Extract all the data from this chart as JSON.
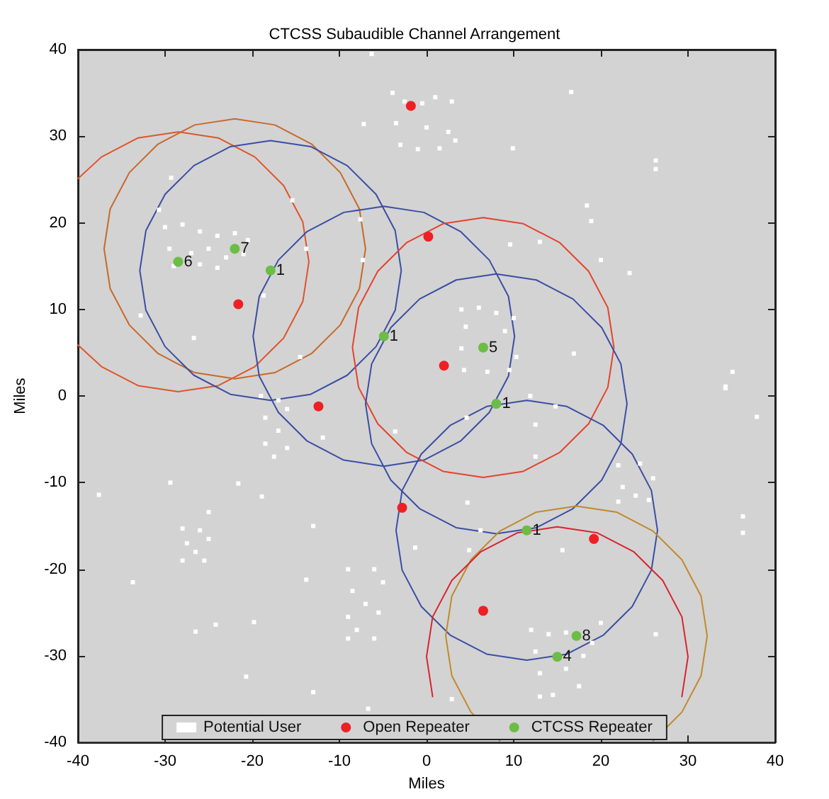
{
  "chart_data": {
    "type": "scatter",
    "title": "CTCSS Subaudible Channel Arrangement",
    "xlabel": "Miles",
    "ylabel": "Miles",
    "xlim": [
      -40,
      40
    ],
    "ylim": [
      -40,
      40
    ],
    "xticks": [
      -40,
      -30,
      -20,
      -10,
      0,
      10,
      20,
      30,
      40
    ],
    "yticks": [
      -40,
      -30,
      -20,
      -10,
      0,
      10,
      20,
      30,
      40
    ],
    "grid": false,
    "legend": "bottom",
    "annotations": [
      {
        "text": "6",
        "x": -28.5,
        "y": 15.5
      },
      {
        "text": "7",
        "x": -22,
        "y": 17
      },
      {
        "text": "1",
        "x": -17.9,
        "y": 14.5
      },
      {
        "text": "1",
        "x": -4.9,
        "y": 6.9
      },
      {
        "text": "5",
        "x": 6.5,
        "y": 5.6
      },
      {
        "text": "1",
        "x": 8,
        "y": -0.9
      },
      {
        "text": "1",
        "x": 11.5,
        "y": -15.5
      },
      {
        "text": "8",
        "x": 17.2,
        "y": -27.7
      },
      {
        "text": "4",
        "x": 15,
        "y": -30.1
      }
    ],
    "series": [
      {
        "type": "line",
        "color": "#e0542a",
        "x": [
          -13.5,
          -14.2,
          -16.4,
          -19.7,
          -23.9,
          -28.5,
          -33.1,
          -37.3,
          -40,
          null,
          -40,
          -37.3,
          -33.1,
          -28.5,
          -23.9,
          -19.7,
          -16.4,
          -14.2,
          -13.5
        ],
        "values": [
          15.5,
          20.1,
          24.3,
          27.6,
          29.8,
          30.5,
          29.8,
          27.6,
          25.1,
          null,
          5.9,
          3.4,
          1.2,
          0.5,
          1.2,
          3.4,
          6.7,
          10.9,
          15.5
        ]
      },
      {
        "type": "line",
        "color": "#c8692a",
        "x": [
          -7,
          -7.7,
          -9.9,
          -13.2,
          -17.4,
          -22,
          -26.6,
          -30.8,
          -34.1,
          -36.3,
          -37,
          null,
          -37,
          -36.3,
          -34.1,
          -30.8,
          -26.6,
          -22,
          -17.4,
          -13.2,
          -9.9,
          -7.7,
          -7
        ],
        "values": [
          17,
          21.6,
          25.8,
          29.1,
          31.3,
          32,
          31.3,
          29.1,
          25.8,
          21.6,
          17,
          null,
          17,
          12.4,
          8.2,
          4.9,
          2.7,
          2,
          2.7,
          4.9,
          8.2,
          12.4,
          17
        ]
      },
      {
        "type": "line",
        "color": "#3b4ea3",
        "x": [
          -2.9,
          -3.6,
          -5.8,
          -9.1,
          -13.3,
          -17.9,
          -22.5,
          -26.7,
          -30,
          -32.2,
          -32.9,
          null,
          -32.9,
          -32.2,
          -30,
          -26.7,
          -22.5,
          -17.9,
          -13.3,
          -9.1,
          -5.8,
          -3.6,
          -2.9
        ],
        "values": [
          14.5,
          19.1,
          23.3,
          26.6,
          28.8,
          29.5,
          28.8,
          26.6,
          23.3,
          19.1,
          14.5,
          null,
          14.5,
          9.9,
          5.7,
          2.4,
          0.2,
          -0.5,
          0.2,
          2.4,
          5.7,
          9.9,
          14.5
        ]
      },
      {
        "type": "line",
        "color": "#3b4ea3",
        "x": [
          10.1,
          9.4,
          7.2,
          3.9,
          -0.3,
          -4.9,
          -9.5,
          -13.7,
          -17,
          -19.2,
          -19.9,
          null,
          -19.9,
          -19.2,
          -17,
          -13.7,
          -9.5,
          -4.9,
          -0.3,
          3.9,
          7.2,
          9.4,
          10.1
        ],
        "values": [
          6.9,
          11.5,
          15.7,
          19,
          21.2,
          21.9,
          21.2,
          19,
          15.7,
          11.5,
          6.9,
          null,
          6.9,
          2.3,
          -1.9,
          -5.2,
          -7.4,
          -8.1,
          -7.4,
          -5.2,
          -1.9,
          2.3,
          6.9
        ]
      },
      {
        "type": "line",
        "color": "#e5432b",
        "x": [
          21.5,
          20.8,
          18.6,
          15.3,
          11.1,
          6.5,
          1.9,
          -2.3,
          -5.6,
          -7.8,
          -8.5,
          null,
          -8.5,
          -7.8,
          -5.6,
          -2.3,
          1.9,
          6.5,
          11.1,
          15.3,
          18.6,
          20.8,
          21.5
        ],
        "values": [
          5.6,
          10.2,
          14.4,
          17.7,
          19.9,
          20.6,
          19.9,
          17.7,
          14.4,
          10.2,
          5.6,
          null,
          5.6,
          1,
          -3.2,
          -6.5,
          -8.7,
          -9.4,
          -8.7,
          -6.5,
          -3.2,
          1,
          5.6
        ]
      },
      {
        "type": "line",
        "color": "#3b4ea3",
        "x": [
          23,
          22.3,
          20.1,
          16.8,
          12.6,
          8,
          3.4,
          -0.8,
          -4.1,
          -6.3,
          -7,
          null,
          -7,
          -6.3,
          -4.1,
          -0.8,
          3.4,
          8,
          12.6,
          16.8,
          20.1,
          22.3,
          23
        ],
        "values": [
          -0.9,
          3.7,
          7.9,
          11.2,
          13.4,
          14.1,
          13.4,
          11.2,
          7.9,
          3.7,
          -0.9,
          null,
          -0.9,
          -5.5,
          -9.7,
          -13,
          -15.2,
          -15.9,
          -15.2,
          -13,
          -9.7,
          -5.5,
          -0.9
        ]
      },
      {
        "type": "line",
        "color": "#3b4ea3",
        "x": [
          26.5,
          25.8,
          23.6,
          20.3,
          16.1,
          11.5,
          6.9,
          2.7,
          -0.6,
          -2.8,
          -3.5,
          null,
          -3.5,
          -2.8,
          -0.6,
          2.7,
          6.9,
          11.5,
          16.1,
          20.3,
          23.6,
          25.8,
          26.5
        ],
        "values": [
          -15.5,
          -10.9,
          -6.7,
          -3.4,
          -1.2,
          -0.5,
          -1.2,
          -3.4,
          -6.7,
          -10.9,
          -15.5,
          null,
          -15.5,
          -20.1,
          -24.3,
          -27.6,
          -29.8,
          -30.5,
          -29.8,
          -27.6,
          -24.3,
          -20.1,
          -15.5
        ]
      },
      {
        "type": "line",
        "color": "#c08a2a",
        "x": [
          32.2,
          31.5,
          29.3,
          26,
          21.8,
          17.2,
          12.6,
          8.4,
          5.1,
          2.9,
          2.2,
          2.9,
          5.1,
          8.4,
          null,
          26,
          29.3,
          31.5,
          32.2
        ],
        "values": [
          -27.7,
          -23.1,
          -18.9,
          -15.6,
          -13.4,
          -12.7,
          -13.4,
          -15.6,
          -18.9,
          -23.1,
          -27.7,
          -32.3,
          -36.5,
          -39.8,
          null,
          -39.8,
          -36.5,
          -32.3,
          -27.7
        ]
      },
      {
        "type": "line",
        "color": "#d8252e",
        "x": [
          30,
          29.3,
          27.1,
          23.8,
          19.6,
          15,
          10.4,
          6.2,
          2.9,
          0.7,
          0,
          0.7,
          null,
          29.3,
          30
        ],
        "values": [
          -30.1,
          -25.5,
          -21.3,
          -18,
          -15.8,
          -15.1,
          -15.8,
          -18,
          -21.3,
          -25.5,
          -30.1,
          -34.7,
          null,
          -34.7,
          -30.1
        ]
      },
      {
        "name": "Potential User",
        "marker": "square",
        "color": "#ffffff",
        "x": [
          -6.3,
          -7.2,
          -29.3,
          -30.7,
          -15.4,
          -7.6,
          -13.8,
          -7.3,
          -18.7,
          -32.8,
          -26.7,
          -14.5,
          16.6,
          9.9,
          26.3,
          26.3,
          18.4,
          18.9,
          9.6,
          13,
          20,
          23.3,
          16.9,
          35.1,
          34.3,
          -11.9,
          -3.6,
          -29.4,
          -37.6,
          -21.6,
          -18.9,
          -25,
          -13,
          -1.3,
          -33.7,
          -13.8,
          -26.5,
          -24.2,
          -19.8,
          -20.7,
          -13,
          -6.7,
          34.3,
          37.9,
          11.9,
          14.8,
          4.6,
          12.5,
          12.5,
          4.7,
          36.3,
          36.3,
          6.2,
          4.9,
          15.6,
          20,
          26.3,
          2.9,
          -3.9,
          -2.5,
          -0.5,
          1,
          2.9,
          -3.5,
          0,
          2.5,
          -3,
          -1,
          1.5,
          3.3,
          -30,
          -28,
          -26,
          -24,
          -22,
          -20.5,
          -29.5,
          -27,
          -25,
          -23,
          -21,
          -29,
          -26,
          -24,
          -19,
          -17,
          -16,
          -18.5,
          -17,
          -18.5,
          -16,
          -17.5,
          -28,
          -26,
          -25,
          -27.5,
          -26.5,
          -28,
          -25.5,
          -9,
          -6,
          -5,
          -8.5,
          -7,
          -5.5,
          -9,
          -8,
          -6,
          -9,
          4,
          6,
          8,
          10,
          4.5,
          9,
          4,
          10.3,
          4.3,
          7,
          9.5,
          22,
          24.5,
          26,
          22.5,
          24,
          22,
          25.5,
          12,
          14,
          16,
          19,
          12.5,
          18,
          13,
          16,
          14.5,
          17.5,
          13
        ],
        "values": [
          39.5,
          31.4,
          25.2,
          21.5,
          22.6,
          20.4,
          17,
          15.7,
          11.6,
          9.3,
          6.7,
          4.5,
          35.1,
          28.6,
          27.2,
          26.2,
          22,
          20.2,
          17.5,
          17.8,
          15.7,
          14.2,
          4.9,
          2.8,
          1.1,
          -4.8,
          -4.1,
          -10,
          -11.4,
          -10.1,
          -11.6,
          -13.4,
          -15,
          -17.5,
          -21.5,
          -21.2,
          -27.2,
          -26.4,
          -26.1,
          -32.4,
          -34.2,
          -36.1,
          0.9,
          -2.4,
          0,
          -1.2,
          -2.5,
          -3.3,
          -7,
          -12.3,
          -13.9,
          -15.8,
          -15.5,
          -17.8,
          -17.8,
          -26.2,
          -27.5,
          -35,
          35,
          34,
          33.8,
          34.5,
          34,
          31.5,
          31,
          30.5,
          29,
          28.5,
          28.6,
          29.5,
          19.5,
          19.8,
          19,
          18.5,
          18.8,
          18,
          17,
          16.5,
          17,
          16,
          16.4,
          15,
          15.2,
          14.8,
          0,
          -0.5,
          -1.5,
          -2.5,
          -4,
          -5.5,
          -6,
          -7,
          -15.3,
          -15.5,
          -16.5,
          -17,
          -18,
          -19,
          -19,
          -20,
          -20,
          -21.5,
          -22.5,
          -24,
          -25,
          -25.5,
          -27,
          -28,
          -28,
          10,
          10.2,
          9.6,
          9,
          8,
          7.5,
          5.5,
          4.5,
          3,
          2.8,
          3,
          -8,
          -7.8,
          -9.5,
          -10.5,
          -11.5,
          -12.2,
          -12,
          -27,
          -27.5,
          -27.3,
          -28.5,
          -29.5,
          -30,
          -32,
          -31.5,
          -34.5,
          -33.5,
          -34.7
        ]
      },
      {
        "name": "Open Repeater",
        "marker": "circle",
        "color": "#ee2024",
        "x": [
          -1.8,
          0.2,
          -21.6,
          -12.4,
          2,
          -2.8,
          19.2,
          6.5
        ],
        "values": [
          33.5,
          18.4,
          10.6,
          -1.2,
          3.5,
          -12.9,
          -16.5,
          -24.8
        ]
      },
      {
        "name": "CTCSS Repeater",
        "marker": "circle",
        "color": "#6cbd45",
        "x": [
          -28.5,
          -22,
          -17.9,
          -4.9,
          6.5,
          8,
          11.5,
          17.2,
          15
        ],
        "values": [
          15.5,
          17,
          14.5,
          6.9,
          5.6,
          -0.9,
          -15.5,
          -27.7,
          -30.1
        ]
      }
    ]
  }
}
